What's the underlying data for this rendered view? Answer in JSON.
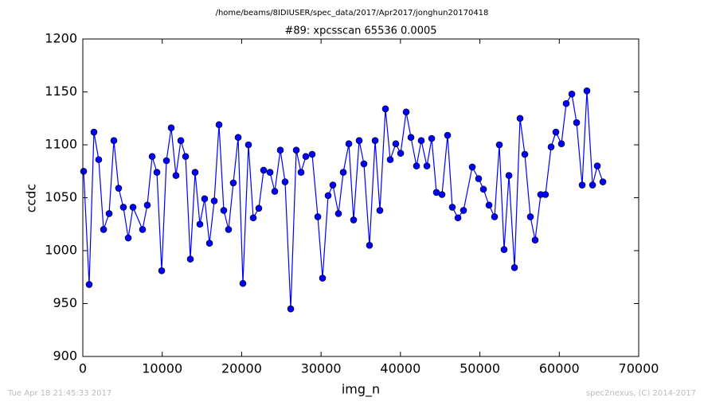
{
  "chart_data": {
    "type": "line",
    "suptitle": "/home/beams/8IDIUSER/spec_data/2017/Apr2017/jonghun20170418",
    "title": "#89: xpcsscan 65536 0.0005",
    "xlabel": "img_n",
    "ylabel": "ccdc",
    "footer_left": "Tue Apr 18 21:45:33 2017",
    "footer_right": "spec2nexus, (C) 2014-2017",
    "xlim": [
      0,
      70000
    ],
    "xticks": [
      0,
      10000,
      20000,
      30000,
      40000,
      50000,
      60000,
      70000
    ],
    "ylim": [
      900,
      1200
    ],
    "yticks": [
      900,
      950,
      1000,
      1050,
      1100,
      1150,
      1200
    ],
    "series": [
      {
        "color": "#0000ff",
        "x": [
          100,
          800,
          1400,
          2000,
          2610,
          3310,
          3910,
          4510,
          5110,
          5720,
          6320,
          7520,
          8120,
          8730,
          9330,
          9930,
          10530,
          11130,
          11730,
          12340,
          12940,
          13540,
          14140,
          14740,
          15340,
          15950,
          16550,
          17150,
          17750,
          18350,
          18950,
          19560,
          20160,
          20860,
          21460,
          22160,
          22770,
          23570,
          24170,
          24870,
          25470,
          26180,
          26880,
          27480,
          28080,
          28880,
          29590,
          30190,
          30890,
          31490,
          32190,
          32800,
          33500,
          34100,
          34800,
          35400,
          36100,
          36810,
          37410,
          38110,
          38710,
          39410,
          40020,
          40720,
          41320,
          42020,
          42620,
          43330,
          43930,
          44530,
          45230,
          45930,
          46530,
          47240,
          47940,
          49040,
          49840,
          50450,
          51150,
          51850,
          52450,
          53050,
          53660,
          54360,
          55060,
          55660,
          56360,
          56960,
          57660,
          58260,
          58970,
          59570,
          60270,
          60870,
          61580,
          62180,
          62880,
          63480,
          64190,
          64790,
          65490
        ],
        "values": [
          1075,
          968,
          1112,
          1086,
          1020,
          1035,
          1104,
          1059,
          1041,
          1012,
          1041,
          1020,
          1043,
          1089,
          1074,
          981,
          1085,
          1116,
          1071,
          1104,
          1089,
          992,
          1074,
          1025,
          1049,
          1007,
          1047,
          1119,
          1038,
          1020,
          1064,
          1107,
          969,
          1100,
          1031,
          1040,
          1076,
          1074,
          1056,
          1095,
          1065,
          945,
          1095,
          1074,
          1089,
          1091,
          1032,
          974,
          1052,
          1062,
          1035,
          1074,
          1101,
          1029,
          1104,
          1082,
          1005,
          1104,
          1038,
          1134,
          1086,
          1101,
          1092,
          1131,
          1107,
          1080,
          1104,
          1080,
          1106,
          1055,
          1053,
          1109,
          1041,
          1031,
          1038,
          1079,
          1068,
          1058,
          1043,
          1032,
          1100,
          1001,
          1071,
          984,
          1125,
          1091,
          1032,
          1010,
          1053,
          1053,
          1098,
          1112,
          1101,
          1139,
          1148,
          1121,
          1062,
          1151,
          1062,
          1080,
          1065
        ]
      }
    ]
  }
}
